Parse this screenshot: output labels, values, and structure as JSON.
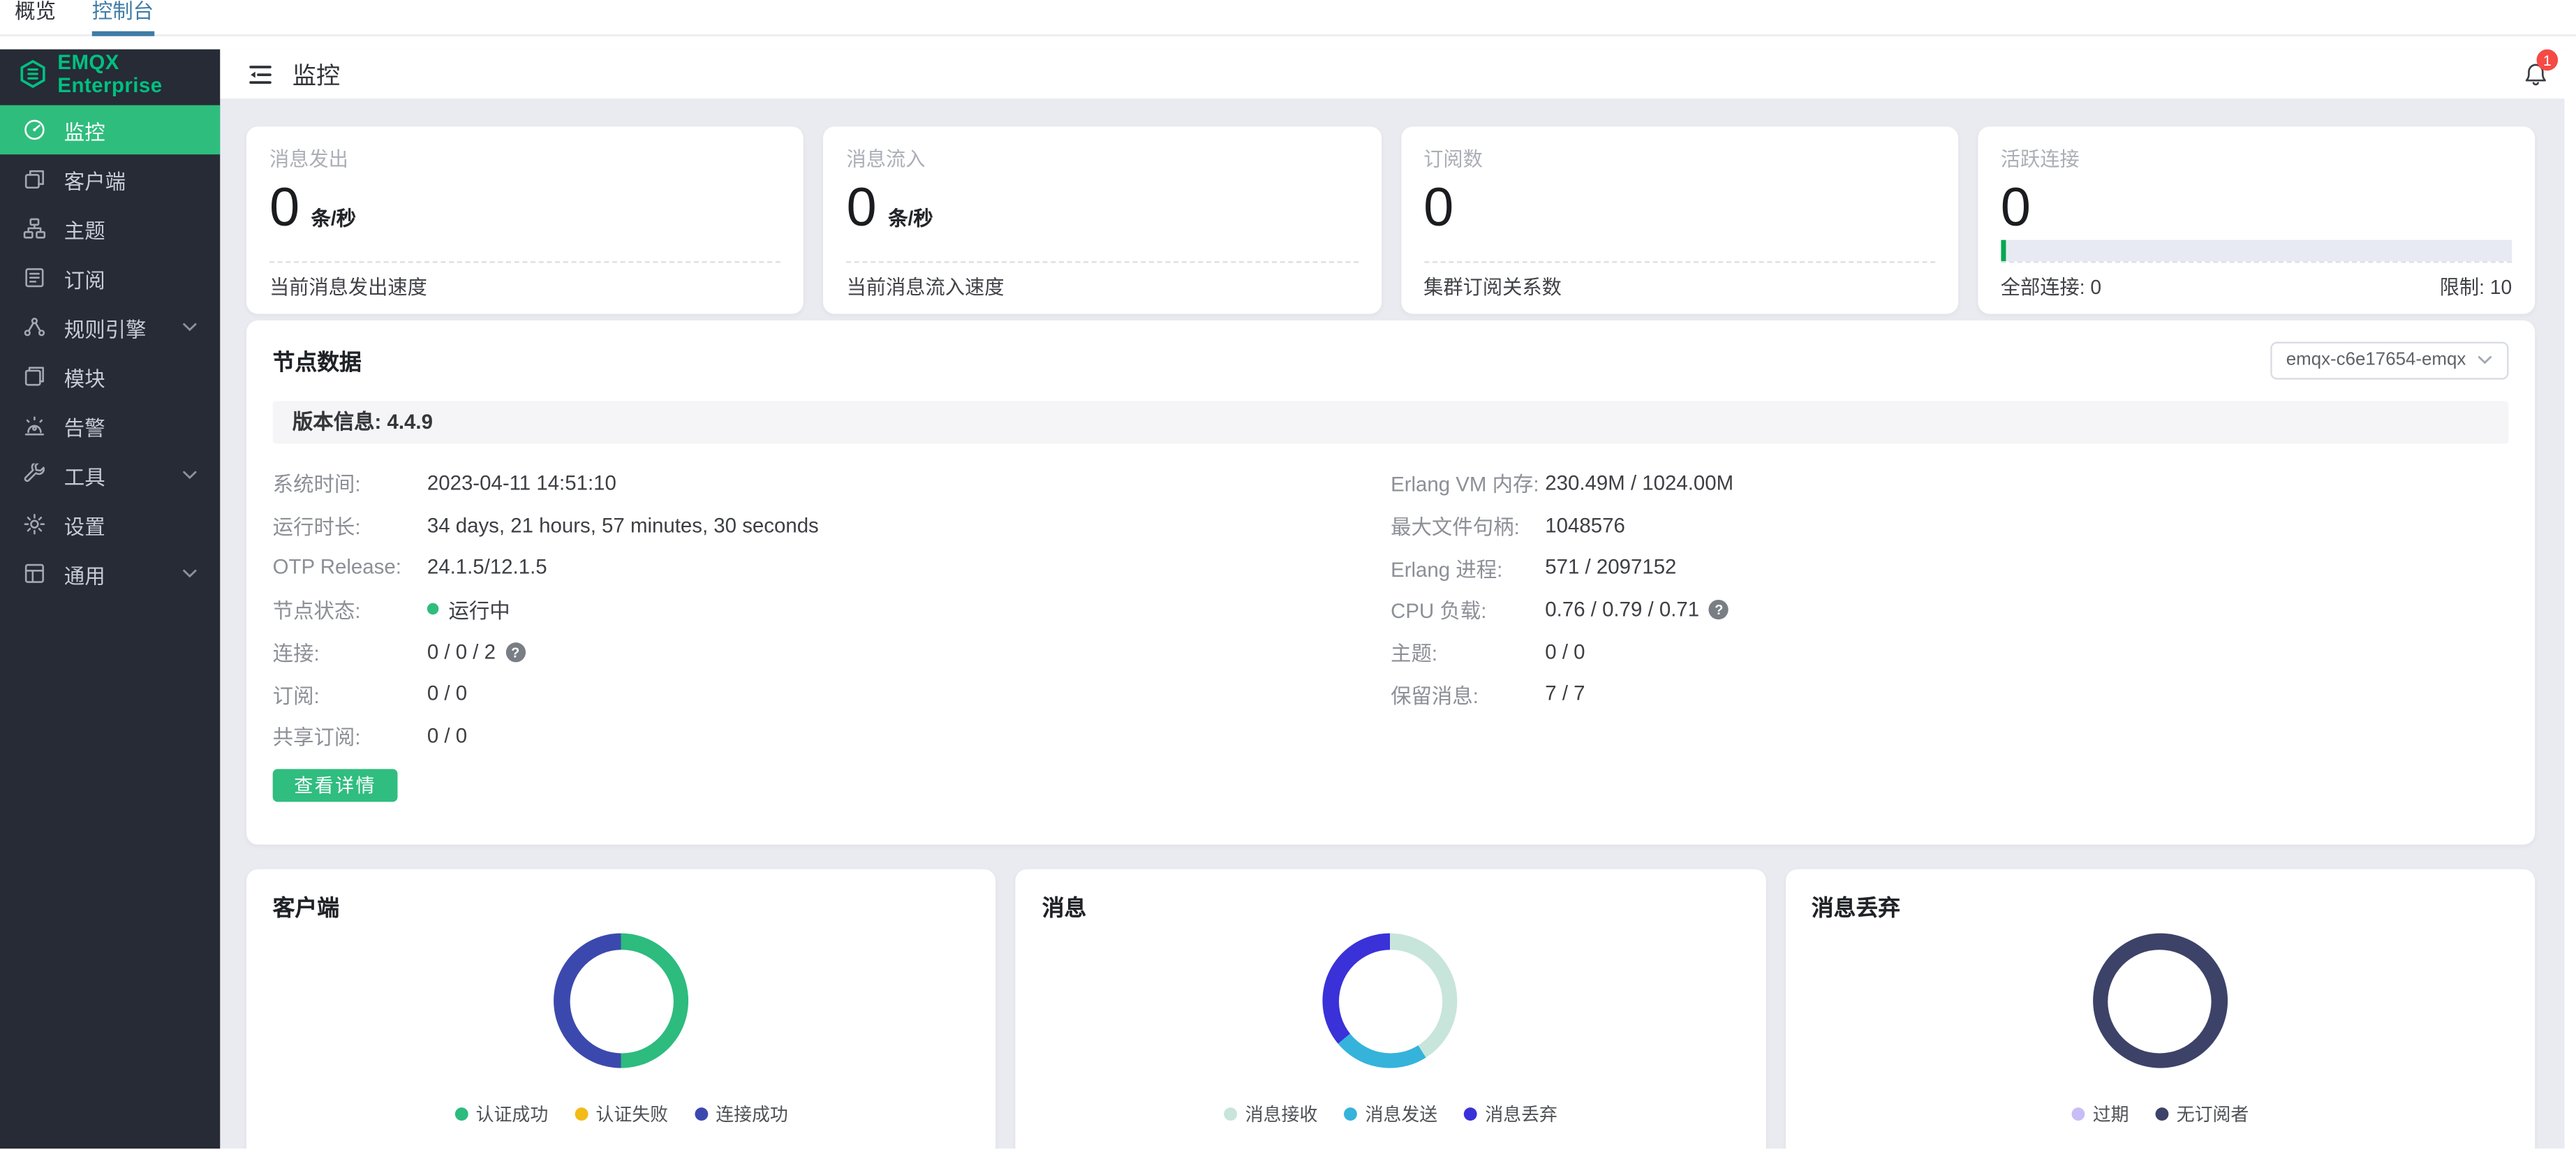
{
  "top_tabs": [
    {
      "label": "概览",
      "active": false
    },
    {
      "label": "控制台",
      "active": true
    }
  ],
  "accent_colors": {
    "primary_green": "#2fbd7d",
    "tab_blue": "#3e7ca6",
    "badge_red": "#f54a45",
    "sidebar_bg": "#262b36"
  },
  "sidebar": {
    "brand": "EMQX Enterprise",
    "items": [
      {
        "label": "监控",
        "icon": "gauge-icon",
        "active": true,
        "expandable": false
      },
      {
        "label": "客户端",
        "icon": "clients-icon",
        "active": false,
        "expandable": false
      },
      {
        "label": "主题",
        "icon": "topics-icon",
        "active": false,
        "expandable": false
      },
      {
        "label": "订阅",
        "icon": "subscriptions-icon",
        "active": false,
        "expandable": false
      },
      {
        "label": "规则引擎",
        "icon": "rule-engine-icon",
        "active": false,
        "expandable": true
      },
      {
        "label": "模块",
        "icon": "modules-icon",
        "active": false,
        "expandable": false
      },
      {
        "label": "告警",
        "icon": "alerts-icon",
        "active": false,
        "expandable": false
      },
      {
        "label": "工具",
        "icon": "tools-icon",
        "active": false,
        "expandable": true
      },
      {
        "label": "设置",
        "icon": "settings-icon",
        "active": false,
        "expandable": false
      },
      {
        "label": "通用",
        "icon": "general-icon",
        "active": false,
        "expandable": true
      }
    ]
  },
  "header": {
    "title": "监控",
    "notification_count": "1"
  },
  "stat_cards": [
    {
      "title": "消息发出",
      "value": "0",
      "unit": "条/秒",
      "footer": "当前消息发出速度"
    },
    {
      "title": "消息流入",
      "value": "0",
      "unit": "条/秒",
      "footer": "当前消息流入速度"
    },
    {
      "title": "订阅数",
      "value": "0",
      "footer": "集群订阅关系数"
    },
    {
      "title": "活跃连接",
      "value": "0",
      "footer_left": "全部连接: 0",
      "footer_right": "限制: 10",
      "progress_percent": 1.2,
      "progress_color": "#00a84e",
      "progress_track": "#e7eaf2"
    }
  ],
  "node_section": {
    "title": "节点数据",
    "node_selector": "emqx-c6e17654-emqx",
    "version": "版本信息: 4.4.9",
    "info_left": [
      {
        "label": "系统时间:",
        "value": "2023-04-11 14:51:10"
      },
      {
        "label": "运行时长:",
        "value": "34 days, 21 hours, 57 minutes, 30 seconds"
      },
      {
        "label": "OTP Release:",
        "value": "24.1.5/12.1.5"
      },
      {
        "label": "节点状态:",
        "value": "运行中",
        "status_dot": true
      },
      {
        "label": "连接:",
        "value": "0 / 0 / 2",
        "help": true
      },
      {
        "label": "订阅:",
        "value": "0 / 0"
      },
      {
        "label": "共享订阅:",
        "value": "0 / 0"
      }
    ],
    "info_right": [
      {
        "label": "Erlang VM 内存:",
        "value": "230.49M / 1024.00M"
      },
      {
        "label": "最大文件句柄:",
        "value": "1048576"
      },
      {
        "label": "Erlang 进程:",
        "value": "571 / 2097152"
      },
      {
        "label": "CPU 负载:",
        "value": "0.76 / 0.79 / 0.71",
        "help": true
      },
      {
        "label": "主题:",
        "value": "0 / 0"
      },
      {
        "label": "保留消息:",
        "value": "7 / 7"
      }
    ],
    "detail_button": "查看详情",
    "help_glyph": "?"
  },
  "chart_data": [
    {
      "type": "pie",
      "title": "客户端",
      "legend_position": "bottom",
      "series": [
        {
          "name": "认证成功",
          "percent": 50,
          "color": "#2dbb7e"
        },
        {
          "name": "认证失败",
          "percent": 0,
          "color": "#f2bb16"
        },
        {
          "name": "连接成功",
          "percent": 50,
          "color": "#3b49ae"
        }
      ]
    },
    {
      "type": "pie",
      "title": "消息",
      "legend_position": "bottom",
      "series": [
        {
          "name": "消息接收",
          "percent": 41,
          "color": "#c7e5da"
        },
        {
          "name": "消息发送",
          "percent": 23,
          "color": "#35b3db"
        },
        {
          "name": "消息丢弃",
          "percent": 36,
          "color": "#3a31d8"
        }
      ]
    },
    {
      "type": "pie",
      "title": "消息丢弃",
      "legend_position": "bottom",
      "series": [
        {
          "name": "过期",
          "percent": 0,
          "color": "#c9bdf7"
        },
        {
          "name": "无订阅者",
          "percent": 100,
          "color": "#3d4268"
        }
      ]
    }
  ]
}
